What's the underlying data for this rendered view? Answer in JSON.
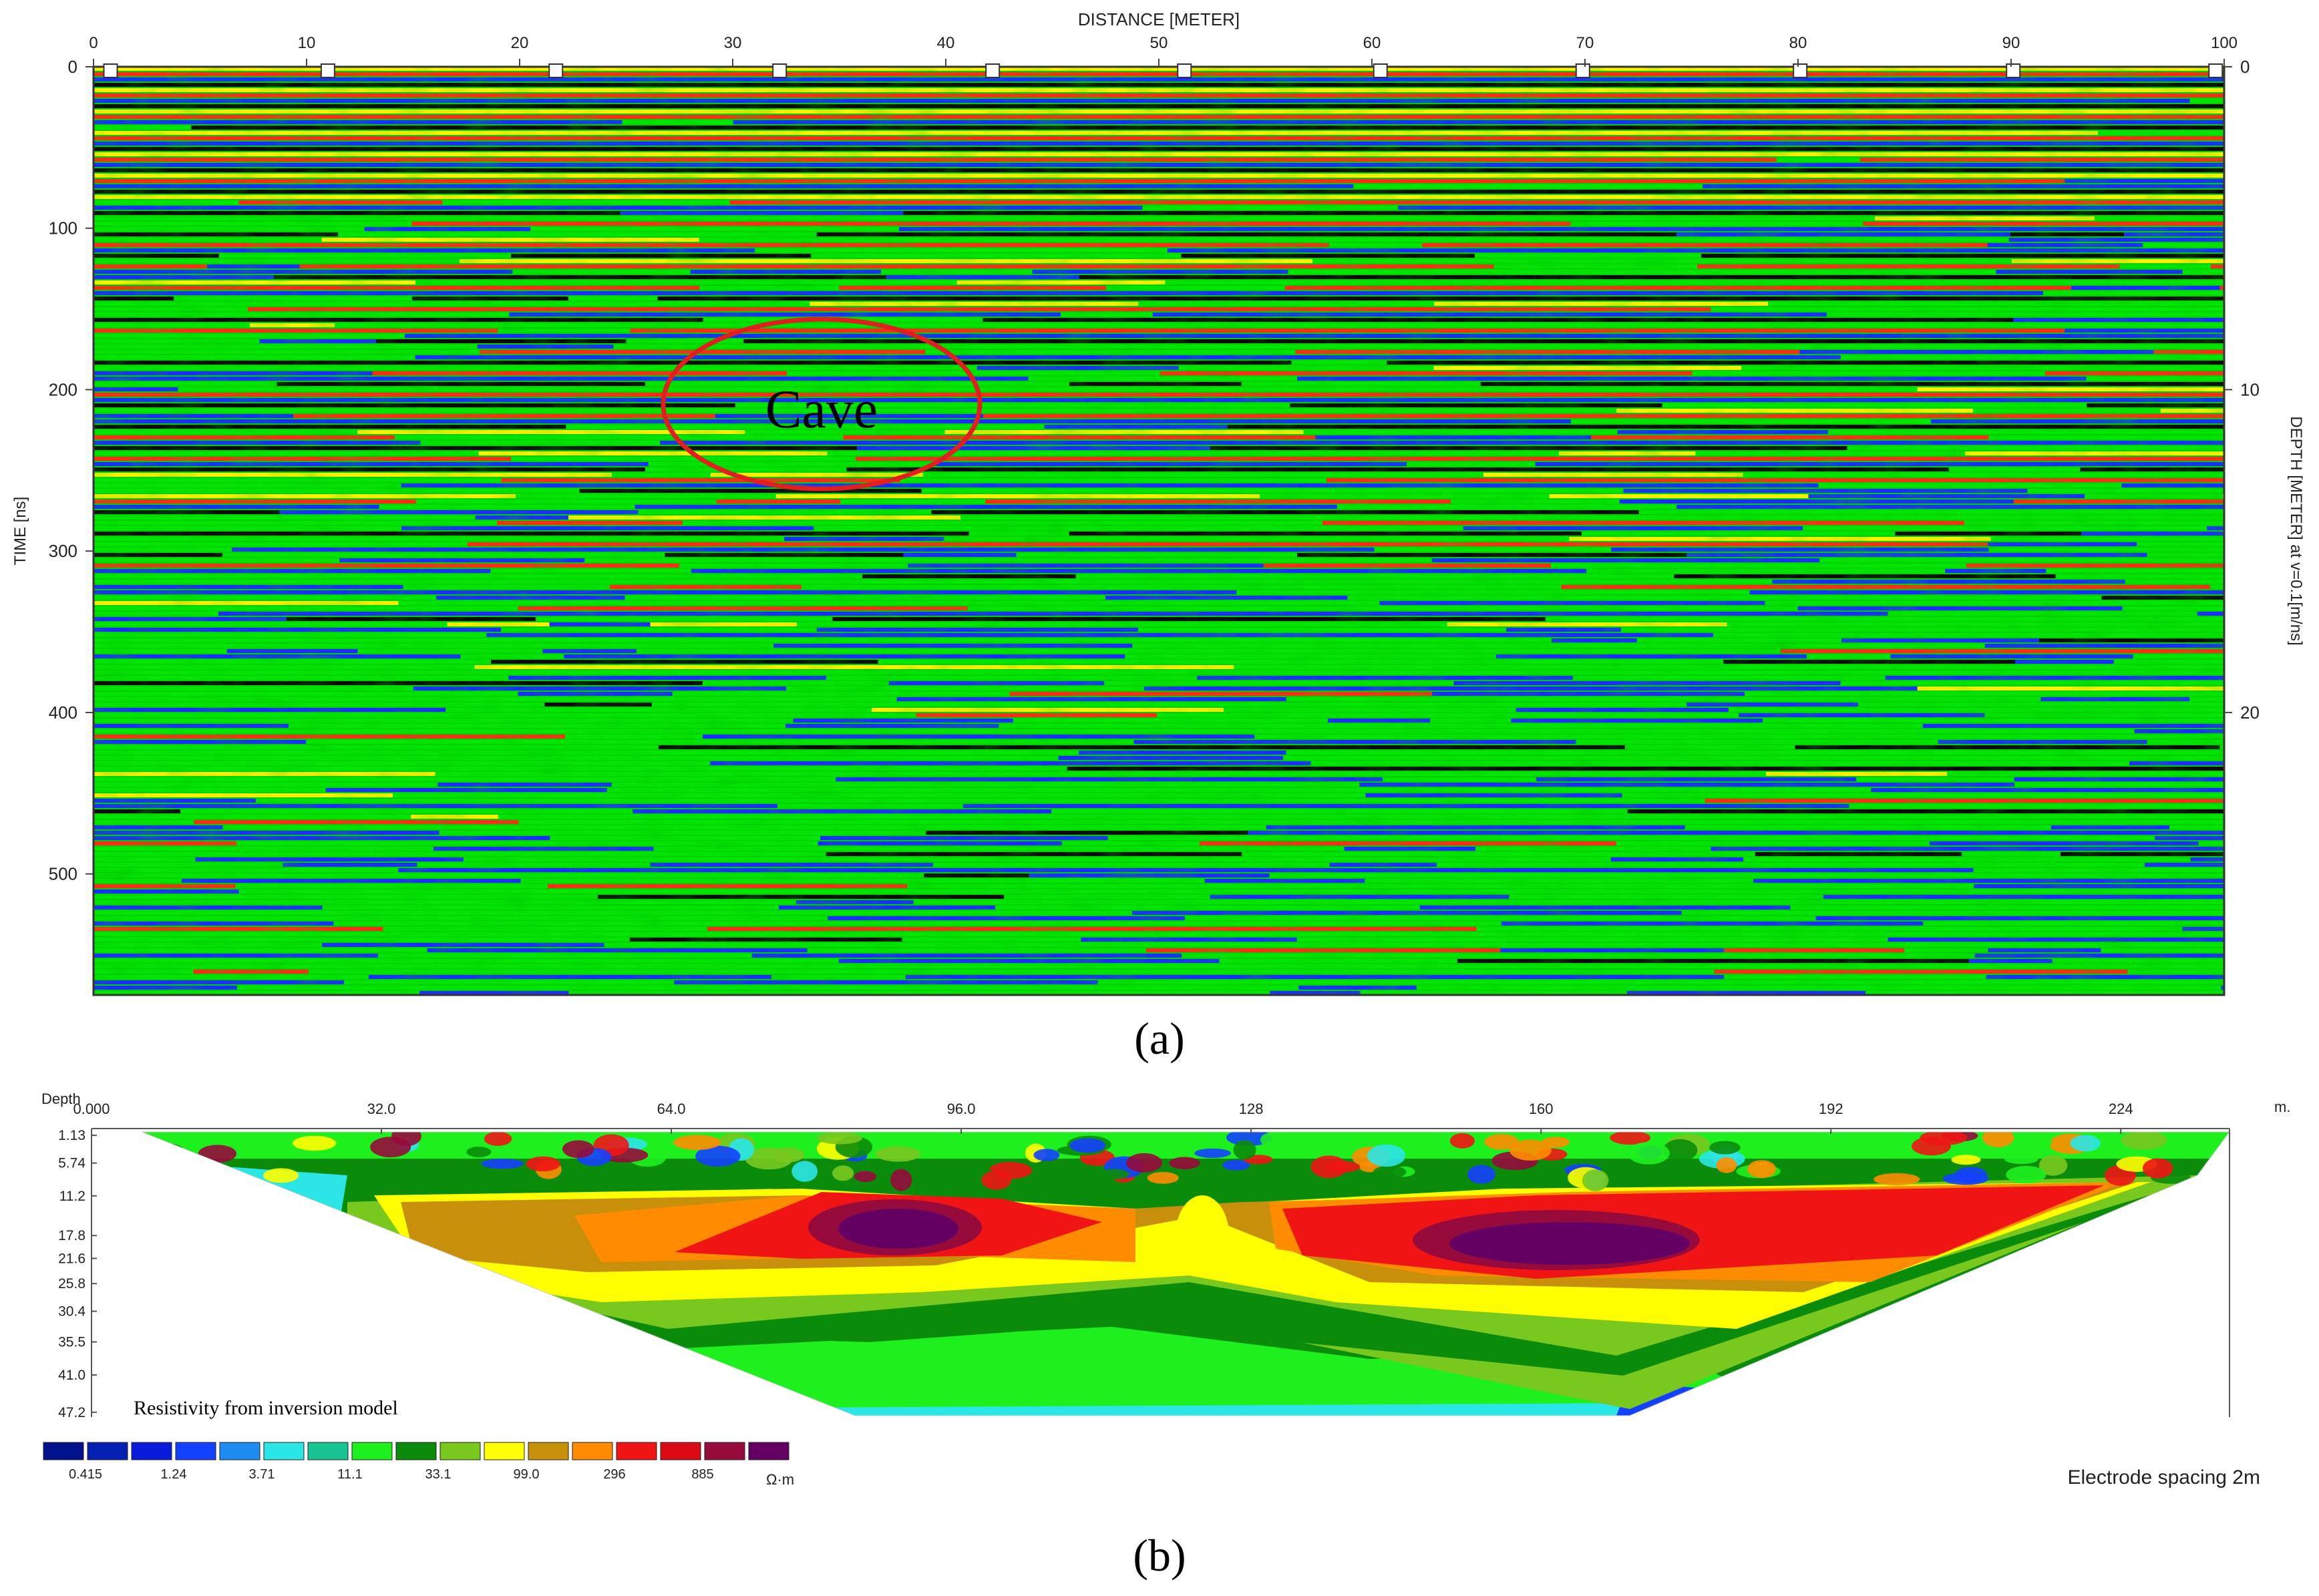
{
  "panel_a": {
    "caption": "(a)",
    "x_axis_title": "DISTANCE [METER]",
    "left_axis_title": "TIME [ns]",
    "right_axis_title": "DEPTH [METER] at v=0.1[m/ns]",
    "annotation": "Cave",
    "colors": {
      "positive": "#ffef00",
      "strong": "#ff2a1a",
      "mid": "#00e600",
      "negative": "#1a2cff",
      "dark": "#0a0a0a",
      "annotation": "#e02020"
    }
  },
  "panel_b": {
    "caption": "(b)",
    "depth_label": "Depth",
    "unit_label": "m.",
    "legend_title": "Resistivity from inversion model",
    "legend_unit": "Ω·m",
    "electrode_note": "Electrode spacing  2m",
    "legend_colors": [
      "#00128c",
      "#0620b4",
      "#0a1adc",
      "#1440ff",
      "#1e8cf0",
      "#2ae6e6",
      "#17c491",
      "#1ef01e",
      "#0a8c0a",
      "#78c81e",
      "#ffff00",
      "#c8900a",
      "#ff8c00",
      "#f01414",
      "#dc0a14",
      "#960a3c",
      "#640064"
    ],
    "legend_ticks": [
      "0.415",
      "1.24",
      "3.71",
      "11.1",
      "33.1",
      "99.0",
      "296",
      "885"
    ]
  },
  "chart_data": [
    {
      "type": "heatmap",
      "title": "",
      "xlabel": "DISTANCE [METER]",
      "ylabel": "TIME [ns]",
      "y2label": "DEPTH [METER] at v=0.1[m/ns]",
      "xlim": [
        0,
        100
      ],
      "ylim": [
        575,
        0
      ],
      "y2lim": [
        28.75,
        0
      ],
      "x_ticks": [
        "0",
        "10",
        "20",
        "30",
        "40",
        "50",
        "60",
        "70",
        "80",
        "90",
        "100"
      ],
      "y_ticks": [
        "0",
        "100",
        "200",
        "300",
        "400",
        "500"
      ],
      "y2_ticks": [
        "0",
        "10",
        "20"
      ],
      "markers_x": [
        0.8,
        11,
        21.7,
        32.2,
        42.2,
        51.2,
        60.4,
        69.9,
        80.1,
        90.1,
        99.6
      ],
      "annotations": [
        {
          "text": "Cave",
          "x": 34,
          "y": 212
        }
      ],
      "grid": false
    },
    {
      "type": "heatmap",
      "title": "",
      "xlabel": "",
      "ylabel": "Depth",
      "xlim": [
        0,
        236
      ],
      "x_ticks": [
        "0.000",
        "32.0",
        "64.0",
        "96.0",
        "128",
        "160",
        "192",
        "224"
      ],
      "x_tick_values": [
        0,
        32,
        64,
        96,
        128,
        160,
        192,
        224
      ],
      "y_ticks": [
        "1.13",
        "5.74",
        "11.2",
        "17.8",
        "21.6",
        "25.8",
        "30.4",
        "35.5",
        "41.0",
        "47.2"
      ],
      "y_tick_values": [
        1.13,
        5.74,
        11.2,
        17.8,
        21.6,
        25.8,
        30.4,
        35.5,
        41.0,
        47.2
      ],
      "ylim": [
        0,
        48
      ],
      "colorbar": {
        "unit": "Ω·m",
        "ticks": [
          0.415,
          1.24,
          3.71,
          11.1,
          33.1,
          99.0,
          296,
          885
        ],
        "scale": "log"
      },
      "high_resistivity_zones": [
        {
          "x_center": 84,
          "depth_center": 19
        },
        {
          "x_center": 160,
          "depth_center": 20
        }
      ],
      "grid": false
    }
  ]
}
